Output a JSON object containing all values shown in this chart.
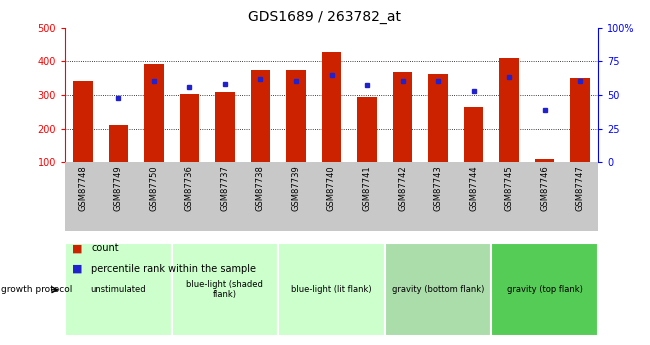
{
  "title": "GDS1689 / 263782_at",
  "samples": [
    "GSM87748",
    "GSM87749",
    "GSM87750",
    "GSM87736",
    "GSM87737",
    "GSM87738",
    "GSM87739",
    "GSM87740",
    "GSM87741",
    "GSM87742",
    "GSM87743",
    "GSM87744",
    "GSM87745",
    "GSM87746",
    "GSM87747"
  ],
  "counts": [
    340,
    210,
    393,
    303,
    310,
    375,
    373,
    427,
    293,
    368,
    363,
    265,
    410,
    110,
    350
  ],
  "percentile_ranks": [
    null,
    48,
    60,
    56,
    58,
    62,
    60,
    65,
    57,
    60,
    60,
    53,
    63,
    39,
    60
  ],
  "group_boundaries": [
    [
      0,
      2,
      "unstimulated",
      "#ccffcc"
    ],
    [
      3,
      5,
      "blue-light (shaded\nflank)",
      "#ccffcc"
    ],
    [
      6,
      8,
      "blue-light (lit flank)",
      "#ccffcc"
    ],
    [
      9,
      11,
      "gravity (bottom flank)",
      "#aaddaa"
    ],
    [
      12,
      14,
      "gravity (top flank)",
      "#55cc55"
    ]
  ],
  "ylim_left": [
    100,
    500
  ],
  "ylim_right": [
    0,
    100
  ],
  "yticks_left": [
    100,
    200,
    300,
    400,
    500
  ],
  "yticks_right": [
    0,
    25,
    50,
    75,
    100
  ],
  "yticklabels_right": [
    "0",
    "25",
    "50",
    "75",
    "100%"
  ],
  "bar_color": "#cc2200",
  "dot_color": "#2222cc",
  "bar_width": 0.55,
  "xtick_bg": "#c8c8c8",
  "legend_count_color": "#cc2200",
  "legend_pct_color": "#2222cc"
}
